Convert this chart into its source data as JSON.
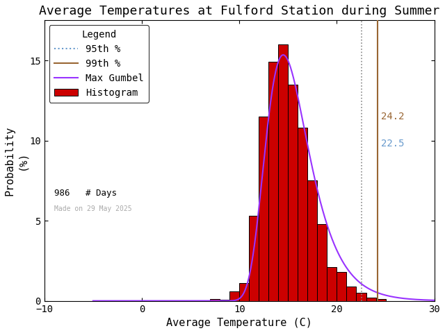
{
  "title": "Average Temperatures at Fulford Station during Summer",
  "xlabel": "Average Temperature (C)",
  "ylabel": "Probability\n(%)",
  "xlim": [
    -10,
    30
  ],
  "ylim": [
    0,
    17.5
  ],
  "xticks": [
    -10,
    0,
    10,
    20,
    30
  ],
  "yticks": [
    0,
    5,
    10,
    15
  ],
  "bin_edges": [
    7.0,
    8.0,
    9.0,
    10.0,
    11.0,
    12.0,
    13.0,
    14.0,
    15.0,
    16.0,
    17.0,
    18.0,
    19.0,
    20.0,
    21.0,
    22.0,
    23.0,
    24.0,
    25.0,
    26.0
  ],
  "bar_heights": [
    0.1,
    0.05,
    0.6,
    1.1,
    5.3,
    11.5,
    14.9,
    16.0,
    13.5,
    10.8,
    7.5,
    4.8,
    2.1,
    1.8,
    0.9,
    0.5,
    0.2,
    0.1,
    0.0,
    0.0
  ],
  "bar_color": "#cc0000",
  "bar_edgecolor": "#000000",
  "gumbel_mu": 14.5,
  "gumbel_beta": 2.2,
  "gumbel_scale": 100.0,
  "gumbel_color": "#9933ff",
  "pct95": 22.5,
  "pct99": 24.2,
  "pct95_color": "#aaaaaa",
  "pct95_dotcolor": "#888888",
  "pct99_color": "#996633",
  "pct95_label_color": "#6699cc",
  "pct99_label_color": "#996633",
  "pct95_label": "22.5",
  "pct99_label": "24.2",
  "n_days": 986,
  "date_label": "Made on 29 May 2025",
  "background_color": "#ffffff",
  "title_fontsize": 13,
  "axis_fontsize": 11,
  "legend_fontsize": 10,
  "tick_fontsize": 10
}
